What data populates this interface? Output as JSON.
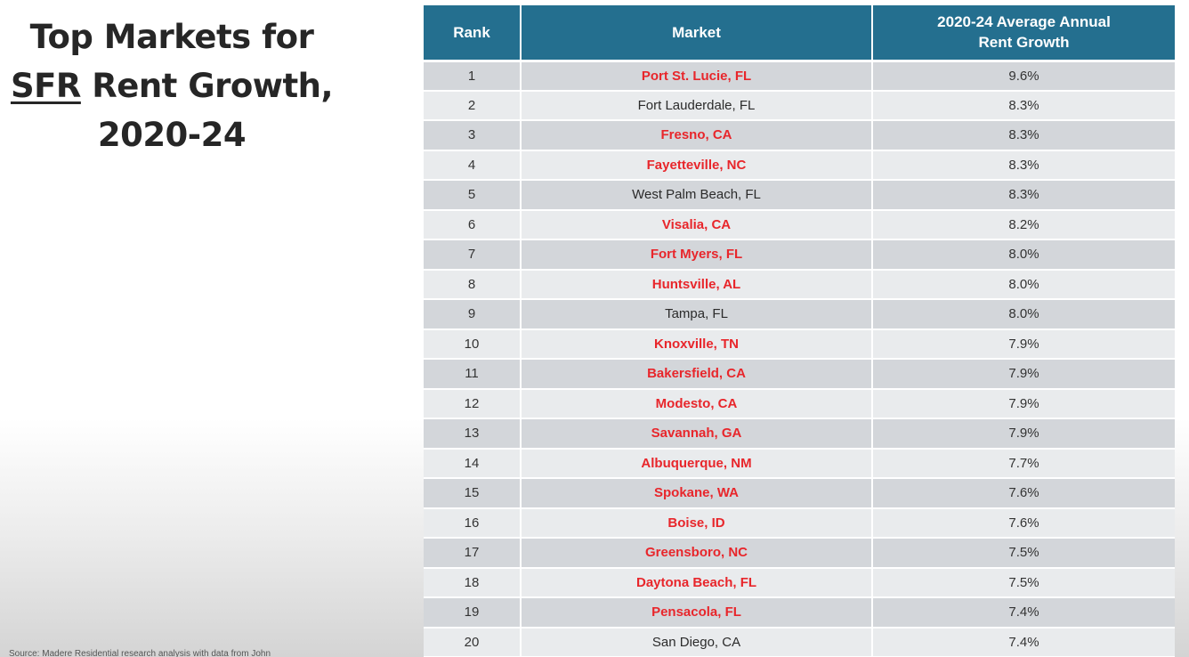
{
  "title": {
    "line1": "Top Markets for",
    "sfr": "SFR",
    "line2_rest": " Rent Growth,",
    "line3": "2020-24"
  },
  "source_note": "Source: Madere Residential research analysis with data from John",
  "table": {
    "headers": {
      "rank": "Rank",
      "market": "Market",
      "growth": "2020-24 Average Annual Rent Growth"
    },
    "highlight_color": "#e8262b",
    "header_color": "#246f8f",
    "rows": [
      {
        "rank": "1",
        "market": "Port St. Lucie, FL",
        "growth": "9.6%",
        "highlight": true
      },
      {
        "rank": "2",
        "market": "Fort Lauderdale, FL",
        "growth": "8.3%",
        "highlight": false
      },
      {
        "rank": "3",
        "market": "Fresno, CA",
        "growth": "8.3%",
        "highlight": true
      },
      {
        "rank": "4",
        "market": "Fayetteville, NC",
        "growth": "8.3%",
        "highlight": true
      },
      {
        "rank": "5",
        "market": "West Palm Beach, FL",
        "growth": "8.3%",
        "highlight": false
      },
      {
        "rank": "6",
        "market": "Visalia, CA",
        "growth": "8.2%",
        "highlight": true
      },
      {
        "rank": "7",
        "market": "Fort Myers, FL",
        "growth": "8.0%",
        "highlight": true
      },
      {
        "rank": "8",
        "market": "Huntsville, AL",
        "growth": "8.0%",
        "highlight": true
      },
      {
        "rank": "9",
        "market": "Tampa, FL",
        "growth": "8.0%",
        "highlight": false
      },
      {
        "rank": "10",
        "market": "Knoxville, TN",
        "growth": "7.9%",
        "highlight": true
      },
      {
        "rank": "11",
        "market": "Bakersfield, CA",
        "growth": "7.9%",
        "highlight": true
      },
      {
        "rank": "12",
        "market": "Modesto, CA",
        "growth": "7.9%",
        "highlight": true
      },
      {
        "rank": "13",
        "market": "Savannah, GA",
        "growth": "7.9%",
        "highlight": true
      },
      {
        "rank": "14",
        "market": "Albuquerque, NM",
        "growth": "7.7%",
        "highlight": true
      },
      {
        "rank": "15",
        "market": "Spokane, WA",
        "growth": "7.6%",
        "highlight": true
      },
      {
        "rank": "16",
        "market": "Boise, ID",
        "growth": "7.6%",
        "highlight": true
      },
      {
        "rank": "17",
        "market": "Greensboro, NC",
        "growth": "7.5%",
        "highlight": true
      },
      {
        "rank": "18",
        "market": "Daytona Beach, FL",
        "growth": "7.5%",
        "highlight": true
      },
      {
        "rank": "19",
        "market": "Pensacola, FL",
        "growth": "7.4%",
        "highlight": true
      },
      {
        "rank": "20",
        "market": "San Diego, CA",
        "growth": "7.4%",
        "highlight": false
      }
    ]
  }
}
